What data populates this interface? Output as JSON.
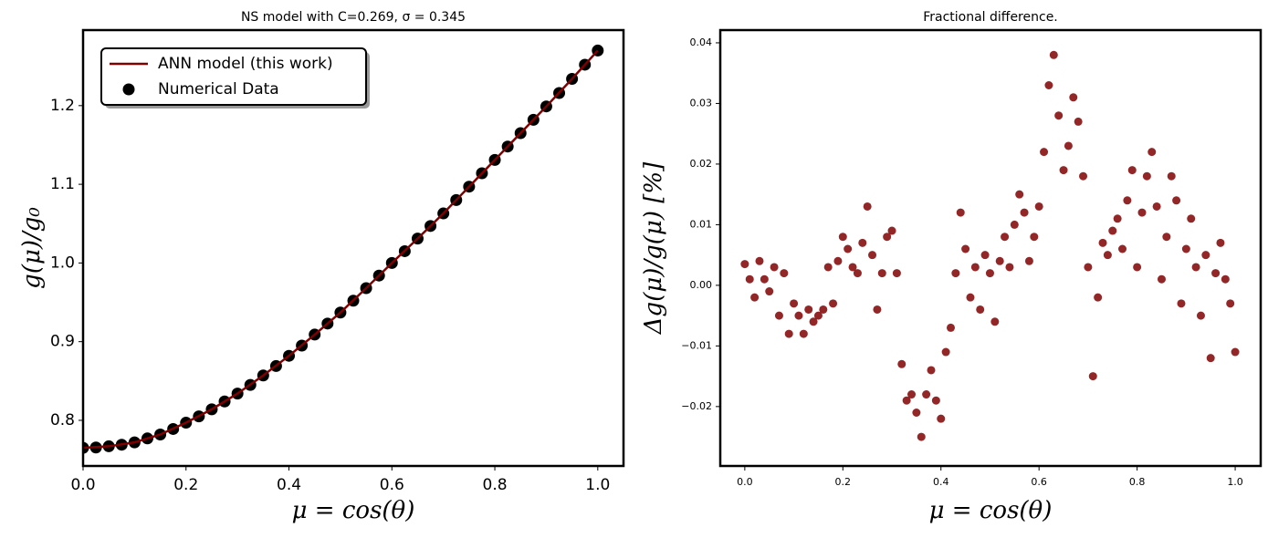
{
  "chart_data": [
    {
      "type": "line",
      "title": "NS model with C=0.269, σ = 0.345",
      "xlabel": "μ = cos(θ)",
      "ylabel": "g(μ)/g₀",
      "xlim": [
        0,
        1.05
      ],
      "ylim": [
        0.742,
        1.296
      ],
      "xticks": [
        {
          "value": 0,
          "label": "0.0"
        },
        {
          "value": 0.2,
          "label": "0.2"
        },
        {
          "value": 0.4,
          "label": "0.4"
        },
        {
          "value": 0.6,
          "label": "0.6"
        },
        {
          "value": 0.8,
          "label": "0.8"
        },
        {
          "value": 1,
          "label": "1.0"
        }
      ],
      "yticks": [
        0.8,
        0.9,
        {
          "value": 1,
          "label": "1.0"
        },
        1.1,
        1.2
      ],
      "legend": "upper left",
      "series": [
        {
          "name": "ANN model (this work)",
          "mode": "line",
          "color": "#7f0000",
          "x": [
            0,
            0.05,
            0.1,
            0.15,
            0.2,
            0.25,
            0.3,
            0.35,
            0.4,
            0.45,
            0.5,
            0.55,
            0.6,
            0.65,
            0.7,
            0.75,
            0.8,
            0.85,
            0.9,
            0.95,
            1
          ],
          "values": [
            0.765,
            0.767,
            0.772,
            0.782,
            0.797,
            0.814,
            0.834,
            0.857,
            0.882,
            0.909,
            0.937,
            0.968,
            1.0,
            1.031,
            1.063,
            1.097,
            1.131,
            1.165,
            1.199,
            1.234,
            1.27
          ]
        },
        {
          "name": "Numerical Data",
          "mode": "markers",
          "color": "#000000",
          "x": [
            0,
            0.025,
            0.05,
            0.075,
            0.1,
            0.125,
            0.15,
            0.175,
            0.2,
            0.225,
            0.25,
            0.275,
            0.3,
            0.325,
            0.35,
            0.375,
            0.4,
            0.425,
            0.45,
            0.475,
            0.5,
            0.525,
            0.55,
            0.575,
            0.6,
            0.625,
            0.65,
            0.675,
            0.7,
            0.725,
            0.75,
            0.775,
            0.8,
            0.825,
            0.85,
            0.875,
            0.9,
            0.925,
            0.95,
            0.975,
            1
          ],
          "values": [
            0.765,
            0.7655,
            0.767,
            0.769,
            0.772,
            0.777,
            0.782,
            0.789,
            0.797,
            0.805,
            0.814,
            0.824,
            0.834,
            0.845,
            0.857,
            0.869,
            0.882,
            0.895,
            0.909,
            0.923,
            0.937,
            0.952,
            0.968,
            0.984,
            1.0,
            1.015,
            1.031,
            1.047,
            1.063,
            1.08,
            1.097,
            1.114,
            1.131,
            1.148,
            1.165,
            1.182,
            1.199,
            1.216,
            1.234,
            1.252,
            1.27
          ]
        }
      ]
    },
    {
      "type": "scatter",
      "title": "Fractional difference.",
      "xlabel": "μ = cos(θ)",
      "ylabel": "Δg(μ)/g(μ)  [%]",
      "xlim": [
        -0.05,
        1.052
      ],
      "ylim": [
        -0.0298,
        0.0421
      ],
      "xticks": [
        {
          "value": 0,
          "label": "0.0"
        },
        {
          "value": 0.2,
          "label": "0.2"
        },
        {
          "value": 0.4,
          "label": "0.4"
        },
        {
          "value": 0.6,
          "label": "0.6"
        },
        {
          "value": 0.8,
          "label": "0.8"
        },
        {
          "value": 1,
          "label": "1.0"
        }
      ],
      "yticks": [
        {
          "value": -0.02,
          "label": "−0.02"
        },
        {
          "value": -0.01,
          "label": "−0.01"
        },
        {
          "value": 0,
          "label": "0.00"
        },
        0.01,
        0.02,
        0.03,
        0.04
      ],
      "series": [
        {
          "color": "#800000",
          "x": [
            0,
            0.01,
            0.02,
            0.03,
            0.04,
            0.05,
            0.06,
            0.07,
            0.08,
            0.09,
            0.1,
            0.11,
            0.12,
            0.13,
            0.14,
            0.15,
            0.16,
            0.17,
            0.18,
            0.19,
            0.2,
            0.21,
            0.22,
            0.23,
            0.24,
            0.25,
            0.26,
            0.27,
            0.28,
            0.29,
            0.3,
            0.31,
            0.32,
            0.33,
            0.34,
            0.35,
            0.36,
            0.37,
            0.38,
            0.39,
            0.4,
            0.41,
            0.42,
            0.43,
            0.44,
            0.45,
            0.46,
            0.47,
            0.48,
            0.49,
            0.5,
            0.51,
            0.52,
            0.53,
            0.54,
            0.55,
            0.56,
            0.57,
            0.58,
            0.59,
            0.6,
            0.61,
            0.62,
            0.63,
            0.64,
            0.65,
            0.66,
            0.67,
            0.68,
            0.69,
            0.7,
            0.71,
            0.72,
            0.73,
            0.74,
            0.75,
            0.76,
            0.77,
            0.78,
            0.79,
            0.8,
            0.81,
            0.82,
            0.83,
            0.84,
            0.85,
            0.86,
            0.87,
            0.88,
            0.89,
            0.9,
            0.91,
            0.92,
            0.93,
            0.94,
            0.95,
            0.96,
            0.97,
            0.98,
            0.99,
            1
          ],
          "values": [
            0.0035,
            0.001,
            -0.002,
            0.004,
            0.001,
            -0.001,
            0.003,
            -0.005,
            0.002,
            -0.008,
            -0.003,
            -0.005,
            -0.008,
            -0.004,
            -0.006,
            -0.005,
            -0.004,
            0.003,
            -0.003,
            0.004,
            0.008,
            0.006,
            0.003,
            0.002,
            0.007,
            0.013,
            0.005,
            -0.004,
            0.002,
            0.008,
            0.009,
            0.002,
            -0.013,
            -0.019,
            -0.018,
            -0.021,
            -0.025,
            -0.018,
            -0.014,
            -0.019,
            -0.022,
            -0.011,
            -0.007,
            0.002,
            0.012,
            0.006,
            -0.002,
            0.003,
            -0.004,
            0.005,
            0.002,
            -0.006,
            0.004,
            0.008,
            0.003,
            0.01,
            0.015,
            0.012,
            0.004,
            0.008,
            0.013,
            0.022,
            0.033,
            0.038,
            0.028,
            0.019,
            0.023,
            0.031,
            0.027,
            0.018,
            0.003,
            -0.015,
            -0.002,
            0.007,
            0.005,
            0.009,
            0.011,
            0.006,
            0.014,
            0.019,
            0.003,
            0.012,
            0.018,
            0.022,
            0.013,
            0.001,
            0.008,
            0.018,
            0.014,
            -0.003,
            0.006,
            0.011,
            0.003,
            -0.005,
            0.005,
            -0.012,
            0.002,
            0.007,
            0.001,
            -0.003,
            -0.011
          ]
        }
      ]
    }
  ]
}
